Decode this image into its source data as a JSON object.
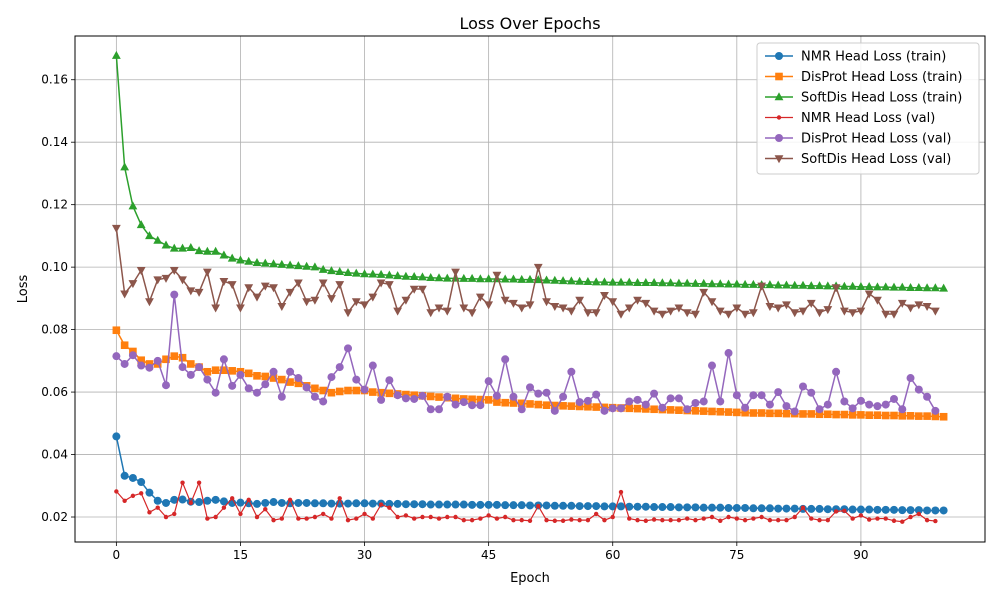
{
  "chart_data": {
    "type": "line",
    "title": "Loss Over Epochs",
    "xlabel": "Epoch",
    "ylabel": "Loss",
    "xlim": [
      -5,
      105
    ],
    "ylim": [
      0.012,
      0.174
    ],
    "xticks": [
      0,
      15,
      30,
      45,
      60,
      75,
      90
    ],
    "yticks": [
      0.02,
      0.04,
      0.06,
      0.08,
      0.1,
      0.12,
      0.14,
      0.16
    ],
    "ytick_labels": [
      "0.02",
      "0.04",
      "0.06",
      "0.08",
      "0.10",
      "0.12",
      "0.14",
      "0.16"
    ],
    "grid": true,
    "legend_position": "top-right",
    "series": [
      {
        "name": "NMR Head Loss (train)",
        "color": "#1f77b4",
        "marker": "circle",
        "values": [
          0.0458,
          0.0332,
          0.0325,
          0.0312,
          0.0278,
          0.0252,
          0.0245,
          0.0255,
          0.0256,
          0.0249,
          0.0248,
          0.0252,
          0.0255,
          0.025,
          0.0245,
          0.0246,
          0.0244,
          0.0242,
          0.0245,
          0.0248,
          0.0245,
          0.0244,
          0.0245,
          0.0245,
          0.0244,
          0.0244,
          0.0243,
          0.0243,
          0.0243,
          0.0244,
          0.0244,
          0.0243,
          0.0243,
          0.0242,
          0.0242,
          0.0241,
          0.0241,
          0.0241,
          0.024,
          0.024,
          0.024,
          0.024,
          0.024,
          0.0239,
          0.0239,
          0.0239,
          0.0239,
          0.0238,
          0.0238,
          0.0238,
          0.0237,
          0.0237,
          0.0237,
          0.0236,
          0.0236,
          0.0236,
          0.0235,
          0.0235,
          0.0235,
          0.0234,
          0.0234,
          0.0234,
          0.0233,
          0.0233,
          0.0233,
          0.0232,
          0.0232,
          0.0232,
          0.0231,
          0.0231,
          0.0231,
          0.023,
          0.023,
          0.023,
          0.0229,
          0.0229,
          0.0229,
          0.0228,
          0.0228,
          0.0228,
          0.0227,
          0.0227,
          0.0227,
          0.0226,
          0.0226,
          0.0226,
          0.0225,
          0.0225,
          0.0225,
          0.0224,
          0.0224,
          0.0224,
          0.0223,
          0.0223,
          0.0223,
          0.0222,
          0.0222,
          0.0222,
          0.0221,
          0.0221,
          0.0221
        ]
      },
      {
        "name": "DisProt Head Loss (train)",
        "color": "#ff7f0e",
        "marker": "square",
        "values": [
          0.0798,
          0.075,
          0.073,
          0.0702,
          0.069,
          0.069,
          0.0705,
          0.0715,
          0.071,
          0.069,
          0.068,
          0.0665,
          0.067,
          0.067,
          0.0668,
          0.0665,
          0.066,
          0.0652,
          0.065,
          0.0645,
          0.064,
          0.0632,
          0.0628,
          0.062,
          0.0612,
          0.0605,
          0.0598,
          0.0602,
          0.0605,
          0.0605,
          0.0605,
          0.06,
          0.0598,
          0.0596,
          0.0594,
          0.0592,
          0.059,
          0.0588,
          0.0586,
          0.0584,
          0.0582,
          0.058,
          0.0578,
          0.0577,
          0.0576,
          0.0575,
          0.0568,
          0.0566,
          0.0565,
          0.0564,
          0.0562,
          0.056,
          0.0558,
          0.0557,
          0.0556,
          0.0555,
          0.0554,
          0.0553,
          0.0552,
          0.0551,
          0.055,
          0.0549,
          0.0548,
          0.0547,
          0.0546,
          0.0545,
          0.0544,
          0.0543,
          0.0542,
          0.0541,
          0.054,
          0.0539,
          0.0538,
          0.0537,
          0.0536,
          0.0535,
          0.0534,
          0.0533,
          0.0533,
          0.0532,
          0.0532,
          0.0531,
          0.0531,
          0.053,
          0.053,
          0.0529,
          0.0529,
          0.0528,
          0.0528,
          0.0527,
          0.0527,
          0.0526,
          0.0526,
          0.0525,
          0.0525,
          0.0524,
          0.0524,
          0.0523,
          0.0523,
          0.0522,
          0.0521
        ]
      },
      {
        "name": "SoftDis Head Loss (train)",
        "color": "#2ca02c",
        "marker": "triangle-up",
        "values": [
          0.1677,
          0.132,
          0.1195,
          0.1135,
          0.11,
          0.1085,
          0.107,
          0.106,
          0.106,
          0.1062,
          0.1052,
          0.105,
          0.105,
          0.1038,
          0.1028,
          0.1022,
          0.1018,
          0.1014,
          0.1012,
          0.101,
          0.1008,
          0.1006,
          0.1004,
          0.1002,
          0.1,
          0.0992,
          0.0988,
          0.0985,
          0.0982,
          0.098,
          0.0978,
          0.0977,
          0.0976,
          0.0974,
          0.0972,
          0.097,
          0.0969,
          0.0968,
          0.0966,
          0.0965,
          0.0964,
          0.0964,
          0.0963,
          0.0963,
          0.0962,
          0.0962,
          0.0962,
          0.0961,
          0.0961,
          0.096,
          0.096,
          0.0959,
          0.0958,
          0.0957,
          0.0956,
          0.0955,
          0.0954,
          0.0953,
          0.0952,
          0.0952,
          0.0951,
          0.0951,
          0.0951,
          0.095,
          0.095,
          0.095,
          0.0949,
          0.0949,
          0.0948,
          0.0948,
          0.0947,
          0.0947,
          0.0946,
          0.0946,
          0.0945,
          0.0945,
          0.0944,
          0.0944,
          0.0943,
          0.0943,
          0.0942,
          0.0942,
          0.0941,
          0.0941,
          0.094,
          0.094,
          0.0939,
          0.0939,
          0.0938,
          0.0938,
          0.0937,
          0.0937,
          0.0936,
          0.0936,
          0.0935,
          0.0935,
          0.0934,
          0.0934,
          0.0933,
          0.0933,
          0.0932
        ]
      },
      {
        "name": "NMR Head Loss (val)",
        "color": "#d62728",
        "marker": "circle-small",
        "values": [
          0.0282,
          0.0252,
          0.0268,
          0.0276,
          0.0215,
          0.023,
          0.02,
          0.021,
          0.031,
          0.0245,
          0.031,
          0.0195,
          0.02,
          0.023,
          0.026,
          0.021,
          0.0255,
          0.02,
          0.0225,
          0.019,
          0.0195,
          0.0255,
          0.0195,
          0.0195,
          0.02,
          0.021,
          0.0195,
          0.026,
          0.019,
          0.0195,
          0.021,
          0.0195,
          0.024,
          0.023,
          0.02,
          0.0205,
          0.0195,
          0.02,
          0.02,
          0.0195,
          0.02,
          0.02,
          0.019,
          0.019,
          0.0195,
          0.0205,
          0.0195,
          0.02,
          0.019,
          0.019,
          0.0188,
          0.0235,
          0.019,
          0.0188,
          0.0188,
          0.0192,
          0.019,
          0.019,
          0.021,
          0.019,
          0.02,
          0.028,
          0.0195,
          0.019,
          0.0188,
          0.0192,
          0.019,
          0.019,
          0.019,
          0.0195,
          0.019,
          0.0195,
          0.02,
          0.0188,
          0.02,
          0.0195,
          0.019,
          0.0195,
          0.02,
          0.019,
          0.019,
          0.019,
          0.02,
          0.023,
          0.0195,
          0.019,
          0.019,
          0.0218,
          0.022,
          0.0195,
          0.0205,
          0.0192,
          0.0195,
          0.0195,
          0.0188,
          0.0185,
          0.02,
          0.021,
          0.019,
          0.0187
        ]
      },
      {
        "name": "DisProt Head Loss (val)",
        "color": "#9467bd",
        "marker": "circle",
        "values": [
          0.0715,
          0.069,
          0.0718,
          0.0685,
          0.0678,
          0.07,
          0.0622,
          0.0912,
          0.068,
          0.0655,
          0.068,
          0.064,
          0.0598,
          0.0705,
          0.062,
          0.0655,
          0.0612,
          0.0598,
          0.0625,
          0.0665,
          0.0585,
          0.0665,
          0.0645,
          0.0615,
          0.0585,
          0.057,
          0.0648,
          0.068,
          0.074,
          0.064,
          0.0608,
          0.0685,
          0.0575,
          0.0638,
          0.059,
          0.058,
          0.0578,
          0.0588,
          0.0545,
          0.0545,
          0.0585,
          0.056,
          0.0568,
          0.0558,
          0.0558,
          0.0635,
          0.0588,
          0.0705,
          0.0585,
          0.0545,
          0.0615,
          0.0595,
          0.0598,
          0.054,
          0.0585,
          0.0665,
          0.0568,
          0.0572,
          0.0592,
          0.054,
          0.0548,
          0.0548,
          0.057,
          0.0575,
          0.056,
          0.0595,
          0.055,
          0.058,
          0.058,
          0.0545,
          0.0565,
          0.057,
          0.0685,
          0.057,
          0.0725,
          0.059,
          0.055,
          0.059,
          0.059,
          0.056,
          0.06,
          0.0555,
          0.0538,
          0.0618,
          0.0598,
          0.0545,
          0.056,
          0.0665,
          0.057,
          0.0548,
          0.0572,
          0.056,
          0.0555,
          0.056,
          0.0578,
          0.0545,
          0.0645,
          0.0608,
          0.0585,
          0.054
        ]
      },
      {
        "name": "SoftDis Head Loss (val)",
        "color": "#8c564b",
        "marker": "triangle-down",
        "values": [
          0.1125,
          0.0915,
          0.0948,
          0.099,
          0.089,
          0.096,
          0.0965,
          0.099,
          0.096,
          0.0925,
          0.092,
          0.0985,
          0.087,
          0.0955,
          0.0945,
          0.087,
          0.0935,
          0.0905,
          0.094,
          0.0935,
          0.0875,
          0.092,
          0.095,
          0.089,
          0.0895,
          0.095,
          0.09,
          0.0945,
          0.0855,
          0.089,
          0.088,
          0.0905,
          0.095,
          0.0945,
          0.086,
          0.0895,
          0.093,
          0.093,
          0.0855,
          0.087,
          0.086,
          0.0985,
          0.087,
          0.0855,
          0.0905,
          0.088,
          0.0975,
          0.0895,
          0.0885,
          0.087,
          0.088,
          0.1,
          0.089,
          0.0875,
          0.087,
          0.086,
          0.0895,
          0.0855,
          0.0855,
          0.091,
          0.089,
          0.085,
          0.087,
          0.0895,
          0.0885,
          0.086,
          0.085,
          0.086,
          0.087,
          0.0855,
          0.085,
          0.092,
          0.089,
          0.086,
          0.085,
          0.087,
          0.085,
          0.0855,
          0.094,
          0.0875,
          0.087,
          0.088,
          0.0855,
          0.086,
          0.0885,
          0.0855,
          0.0865,
          0.0935,
          0.086,
          0.0855,
          0.086,
          0.0915,
          0.0895,
          0.085,
          0.085,
          0.0885,
          0.087,
          0.088,
          0.0875,
          0.086
        ]
      }
    ]
  }
}
